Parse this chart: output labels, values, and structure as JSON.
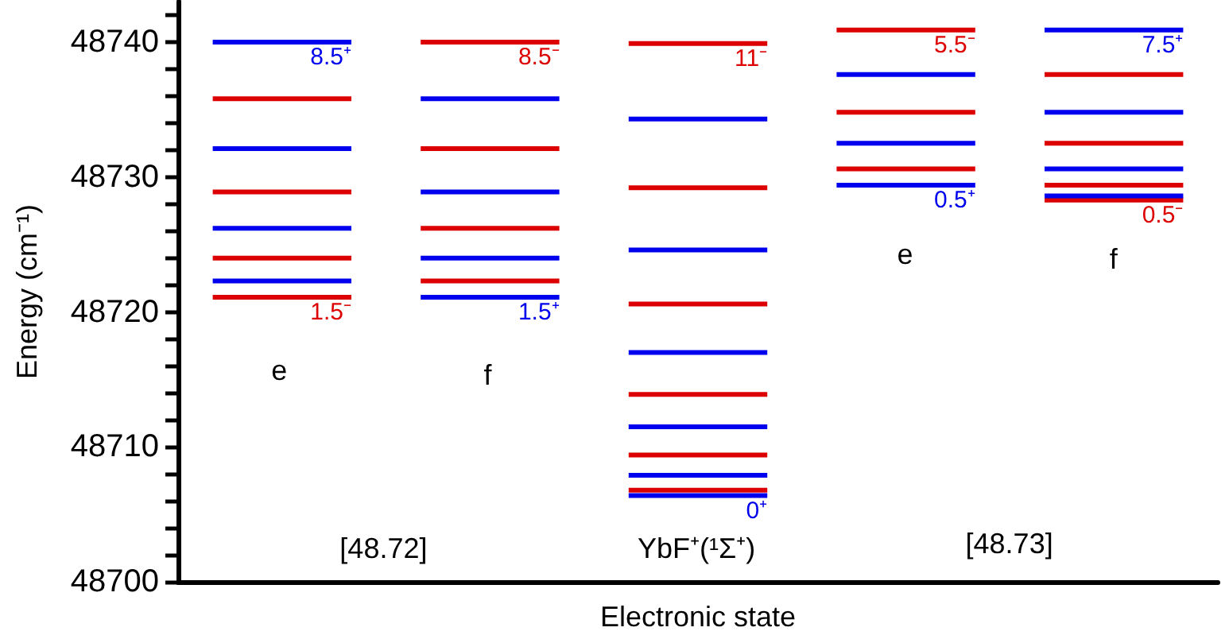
{
  "chart_data": {
    "type": "line",
    "xlabel": "Electronic state",
    "ylabel": "Energy (cm⁻¹)",
    "marker": "none",
    "categories": [
      null,
      null,
      null,
      null,
      null,
      null,
      null,
      null,
      null,
      null,
      null,
      null,
      null,
      null,
      null
    ],
    "ylim": [
      48700,
      48743
    ],
    "yticks": [
      48700,
      {
        "value": 48702,
        "label": null
      },
      {
        "value": 48704,
        "label": null
      },
      {
        "value": 48706,
        "label": null
      },
      {
        "value": 48708,
        "label": null
      },
      48710,
      {
        "value": 48712,
        "label": null
      },
      {
        "value": 48714,
        "label": null
      },
      {
        "value": 48716,
        "label": null
      },
      {
        "value": 48718,
        "label": null
      },
      48720,
      {
        "value": 48722,
        "label": null
      },
      {
        "value": 48724,
        "label": null
      },
      {
        "value": 48726,
        "label": null
      },
      {
        "value": 48728,
        "label": null
      },
      48730,
      {
        "value": 48732,
        "label": null
      },
      {
        "value": 48734,
        "label": null
      },
      {
        "value": 48736,
        "label": null
      },
      {
        "value": 48738,
        "label": null
      },
      48740,
      {
        "value": 48742,
        "label": null
      }
    ],
    "annotations": [
      "e",
      "f",
      "[48.72]",
      "YbF⁺(¹Σ⁺)",
      "[48.73]",
      "e",
      "f"
    ],
    "series": [
      {
        "name": "1.5⁻",
        "color": "#dd0000",
        "values": [
          48721.1,
          48721.1,
          48721.1,
          null,
          null,
          null,
          null,
          null,
          null,
          null,
          null,
          null,
          null,
          null,
          null
        ]
      },
      {
        "color": "#0000ee",
        "values": [
          48722.3,
          48722.3,
          48722.3,
          null,
          null,
          null,
          null,
          null,
          null,
          null,
          null,
          null,
          null,
          null,
          null
        ]
      },
      {
        "color": "#dd0000",
        "values": [
          48724.0,
          48724.0,
          48724.0,
          null,
          null,
          null,
          null,
          null,
          null,
          null,
          null,
          null,
          null,
          null,
          null
        ]
      },
      {
        "color": "#0000ee",
        "values": [
          48726.2,
          48726.2,
          48726.2,
          null,
          null,
          null,
          null,
          null,
          null,
          null,
          null,
          null,
          null,
          null,
          null
        ]
      },
      {
        "color": "#dd0000",
        "values": [
          48728.9,
          48728.9,
          48728.9,
          null,
          null,
          null,
          null,
          null,
          null,
          null,
          null,
          null,
          null,
          null,
          null
        ]
      },
      {
        "color": "#0000ee",
        "values": [
          48732.1,
          48732.1,
          48732.1,
          null,
          null,
          null,
          null,
          null,
          null,
          null,
          null,
          null,
          null,
          null,
          null
        ]
      },
      {
        "color": "#dd0000",
        "values": [
          48735.8,
          48735.8,
          48735.8,
          null,
          null,
          null,
          null,
          null,
          null,
          null,
          null,
          null,
          null,
          null,
          null
        ]
      },
      {
        "name": "8.5⁺",
        "color": "#0000ee",
        "values": [
          48740.0,
          48740.0,
          48740.0,
          null,
          null,
          null,
          null,
          null,
          null,
          null,
          null,
          null,
          null,
          null,
          null
        ]
      },
      {
        "name": "1.5⁺",
        "color": "#0000ee",
        "values": [
          null,
          null,
          null,
          48721.1,
          48721.1,
          48721.1,
          null,
          null,
          null,
          null,
          null,
          null,
          null,
          null,
          null
        ]
      },
      {
        "color": "#dd0000",
        "values": [
          null,
          null,
          null,
          48722.3,
          48722.3,
          48722.3,
          null,
          null,
          null,
          null,
          null,
          null,
          null,
          null,
          null
        ]
      },
      {
        "color": "#0000ee",
        "values": [
          null,
          null,
          null,
          48724.0,
          48724.0,
          48724.0,
          null,
          null,
          null,
          null,
          null,
          null,
          null,
          null,
          null
        ]
      },
      {
        "color": "#dd0000",
        "values": [
          null,
          null,
          null,
          48726.2,
          48726.2,
          48726.2,
          null,
          null,
          null,
          null,
          null,
          null,
          null,
          null,
          null
        ]
      },
      {
        "color": "#0000ee",
        "values": [
          null,
          null,
          null,
          48728.9,
          48728.9,
          48728.9,
          null,
          null,
          null,
          null,
          null,
          null,
          null,
          null,
          null
        ]
      },
      {
        "color": "#dd0000",
        "values": [
          null,
          null,
          null,
          48732.1,
          48732.1,
          48732.1,
          null,
          null,
          null,
          null,
          null,
          null,
          null,
          null,
          null
        ]
      },
      {
        "color": "#0000ee",
        "values": [
          null,
          null,
          null,
          48735.8,
          48735.8,
          48735.8,
          null,
          null,
          null,
          null,
          null,
          null,
          null,
          null,
          null
        ]
      },
      {
        "name": "8.5⁻",
        "color": "#dd0000",
        "values": [
          null,
          null,
          null,
          48740.0,
          48740.0,
          48740.0,
          null,
          null,
          null,
          null,
          null,
          null,
          null,
          null,
          null
        ]
      },
      {
        "name": "0⁺",
        "color": "#0000ee",
        "values": [
          null,
          null,
          null,
          null,
          null,
          null,
          48706.4,
          48706.4,
          48706.4,
          null,
          null,
          null,
          null,
          null,
          null
        ]
      },
      {
        "color": "#dd0000",
        "values": [
          null,
          null,
          null,
          null,
          null,
          null,
          48706.8,
          48706.8,
          48706.8,
          null,
          null,
          null,
          null,
          null,
          null
        ]
      },
      {
        "color": "#0000ee",
        "values": [
          null,
          null,
          null,
          null,
          null,
          null,
          48707.9,
          48707.9,
          48707.9,
          null,
          null,
          null,
          null,
          null,
          null
        ]
      },
      {
        "color": "#dd0000",
        "values": [
          null,
          null,
          null,
          null,
          null,
          null,
          48709.4,
          48709.4,
          48709.4,
          null,
          null,
          null,
          null,
          null,
          null
        ]
      },
      {
        "color": "#0000ee",
        "values": [
          null,
          null,
          null,
          null,
          null,
          null,
          48711.5,
          48711.5,
          48711.5,
          null,
          null,
          null,
          null,
          null,
          null
        ]
      },
      {
        "color": "#dd0000",
        "values": [
          null,
          null,
          null,
          null,
          null,
          null,
          48713.9,
          48713.9,
          48713.9,
          null,
          null,
          null,
          null,
          null,
          null
        ]
      },
      {
        "color": "#0000ee",
        "values": [
          null,
          null,
          null,
          null,
          null,
          null,
          48717.0,
          48717.0,
          48717.0,
          null,
          null,
          null,
          null,
          null,
          null
        ]
      },
      {
        "color": "#dd0000",
        "values": [
          null,
          null,
          null,
          null,
          null,
          null,
          48720.6,
          48720.6,
          48720.6,
          null,
          null,
          null,
          null,
          null,
          null
        ]
      },
      {
        "color": "#0000ee",
        "values": [
          null,
          null,
          null,
          null,
          null,
          null,
          48724.6,
          48724.6,
          48724.6,
          null,
          null,
          null,
          null,
          null,
          null
        ]
      },
      {
        "color": "#dd0000",
        "values": [
          null,
          null,
          null,
          null,
          null,
          null,
          48729.2,
          48729.2,
          48729.2,
          null,
          null,
          null,
          null,
          null,
          null
        ]
      },
      {
        "color": "#0000ee",
        "values": [
          null,
          null,
          null,
          null,
          null,
          null,
          48734.3,
          48734.3,
          48734.3,
          null,
          null,
          null,
          null,
          null,
          null
        ]
      },
      {
        "name": "11⁻",
        "color": "#dd0000",
        "values": [
          null,
          null,
          null,
          null,
          null,
          null,
          48739.9,
          48739.9,
          48739.9,
          null,
          null,
          null,
          null,
          null,
          null
        ]
      },
      {
        "name": "0.5⁺",
        "color": "#0000ee",
        "values": [
          null,
          null,
          null,
          null,
          null,
          null,
          null,
          null,
          null,
          48729.4,
          48729.4,
          48729.4,
          null,
          null,
          null
        ]
      },
      {
        "color": "#dd0000",
        "values": [
          null,
          null,
          null,
          null,
          null,
          null,
          null,
          null,
          null,
          48730.6,
          48730.6,
          48730.6,
          null,
          null,
          null
        ]
      },
      {
        "color": "#0000ee",
        "values": [
          null,
          null,
          null,
          null,
          null,
          null,
          null,
          null,
          null,
          48732.5,
          48732.5,
          48732.5,
          null,
          null,
          null
        ]
      },
      {
        "color": "#dd0000",
        "values": [
          null,
          null,
          null,
          null,
          null,
          null,
          null,
          null,
          null,
          48734.8,
          48734.8,
          48734.8,
          null,
          null,
          null
        ]
      },
      {
        "color": "#0000ee",
        "values": [
          null,
          null,
          null,
          null,
          null,
          null,
          null,
          null,
          null,
          48737.6,
          48737.6,
          48737.6,
          null,
          null,
          null
        ]
      },
      {
        "name": "5.5⁻",
        "color": "#dd0000",
        "values": [
          null,
          null,
          null,
          null,
          null,
          null,
          null,
          null,
          null,
          48740.9,
          48740.9,
          48740.9,
          null,
          null,
          null
        ]
      },
      {
        "name": "0.5⁻",
        "color": "#dd0000",
        "values": [
          null,
          null,
          null,
          null,
          null,
          null,
          null,
          null,
          null,
          null,
          null,
          null,
          48728.3,
          48728.3,
          48728.3
        ]
      },
      {
        "color": "#0000ee",
        "values": [
          null,
          null,
          null,
          null,
          null,
          null,
          null,
          null,
          null,
          null,
          null,
          null,
          48728.6,
          48728.6,
          48728.6
        ]
      },
      {
        "color": "#dd0000",
        "values": [
          null,
          null,
          null,
          null,
          null,
          null,
          null,
          null,
          null,
          null,
          null,
          null,
          48729.4,
          48729.4,
          48729.4
        ]
      },
      {
        "color": "#0000ee",
        "values": [
          null,
          null,
          null,
          null,
          null,
          null,
          null,
          null,
          null,
          null,
          null,
          null,
          48730.6,
          48730.6,
          48730.6
        ]
      },
      {
        "color": "#dd0000",
        "values": [
          null,
          null,
          null,
          null,
          null,
          null,
          null,
          null,
          null,
          null,
          null,
          null,
          48732.5,
          48732.5,
          48732.5
        ]
      },
      {
        "color": "#0000ee",
        "values": [
          null,
          null,
          null,
          null,
          null,
          null,
          null,
          null,
          null,
          null,
          null,
          null,
          48734.8,
          48734.8,
          48734.8
        ]
      },
      {
        "color": "#dd0000",
        "values": [
          null,
          null,
          null,
          null,
          null,
          null,
          null,
          null,
          null,
          null,
          null,
          null,
          48737.6,
          48737.6,
          48737.6
        ]
      },
      {
        "name": "7.5⁺",
        "color": "#0000ee",
        "values": [
          null,
          null,
          null,
          null,
          null,
          null,
          null,
          null,
          null,
          null,
          null,
          null,
          48740.9,
          48740.9,
          48740.9
        ]
      }
    ]
  }
}
